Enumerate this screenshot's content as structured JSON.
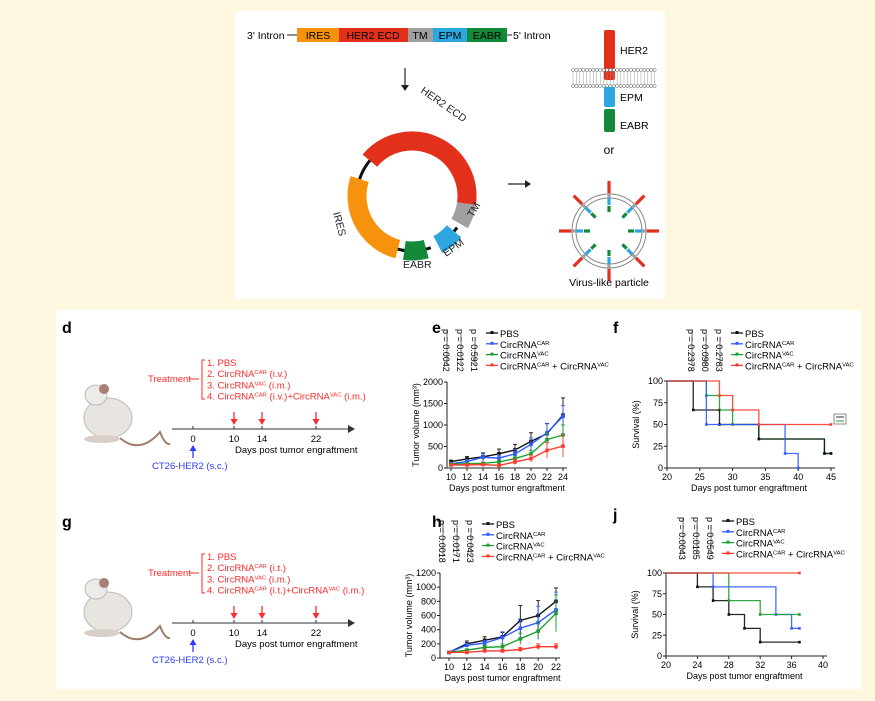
{
  "colors": {
    "PBS": "#111111",
    "CAR": "#2f5cff",
    "VAC": "#1f9e2f",
    "COMBO": "#ff3b30",
    "IRES": "#f7920c",
    "HER2": "#e3301b",
    "TM": "#a0a0a0",
    "EPM": "#2ea6e0",
    "EABR": "#128a3a",
    "background": "#fdf8df"
  },
  "construct": {
    "left_label": "3' Intron",
    "right_label": "5' Intron",
    "segments": [
      "IRES",
      "HER2 ECD",
      "TM",
      "EPM",
      "EABR"
    ],
    "circle_labels": {
      "her2": "HER2 ECD",
      "tm": "TM",
      "epm": "EPM",
      "eabr": "EABR",
      "ires": "IRES"
    },
    "protein_labels": {
      "her2": "HER2",
      "epm": "EPM",
      "eabr": "EABR"
    },
    "or": "or",
    "vlp_label": "Virus-like particle"
  },
  "schemes": [
    {
      "panel": "d",
      "treatment_label": "Treatment",
      "items": [
        [
          "1. PBS",
          ""
        ],
        [
          "2. CircRNA",
          "CAR",
          " (i.v.)"
        ],
        [
          "3. CircRNA",
          "VAC",
          " (i.m.)"
        ],
        [
          "4. CircRNA",
          "CAR",
          " (i.v.)+CircRNA",
          "VAC",
          " (i.m.)"
        ]
      ],
      "ticks": [
        "0",
        "10",
        "14",
        "22"
      ],
      "axis_label": "Days post tumor engraftment",
      "inoculation": "CT26-HER2 (s.c.)"
    },
    {
      "panel": "g",
      "treatment_label": "Treatment",
      "items": [
        [
          "1. PBS",
          ""
        ],
        [
          "2. CircRNA",
          "CAR",
          " (i.t.)"
        ],
        [
          "3. CircRNA",
          "VAC",
          " (i.m.)"
        ],
        [
          "4. CircRNA",
          "CAR",
          " (i.t.)+CircRNA",
          "VAC",
          " (i.m.)"
        ]
      ],
      "ticks": [
        "0",
        "10",
        "14",
        "22"
      ],
      "axis_label": "Days post tumor engraftment",
      "inoculation": "CT26-HER2 (s.c.)"
    }
  ],
  "legend": [
    [
      "PBS"
    ],
    [
      "CircRNA",
      "CAR"
    ],
    [
      "CircRNA",
      "VAC"
    ],
    [
      "CircRNA",
      "CAR",
      " + CircRNA",
      "VAC"
    ]
  ],
  "chart_data": [
    {
      "panel": "e",
      "type": "line",
      "xlabel": "Days post tumor engraftment",
      "ylabel": "Tumor volume (mm³)",
      "xlim": [
        10,
        24
      ],
      "ylim": [
        0,
        2000
      ],
      "xticks": [
        10,
        12,
        14,
        16,
        18,
        20,
        22,
        24
      ],
      "yticks": [
        0,
        500,
        1000,
        1500,
        2000
      ],
      "p_values": [
        "p = 0.0042",
        "p = 0.0122",
        "p = 0.5921"
      ],
      "x": [
        10,
        12,
        14,
        16,
        18,
        20,
        22,
        24
      ],
      "series": [
        {
          "key": "PBS",
          "values": [
            150,
            210,
            260,
            330,
            420,
            620,
            800,
            1230
          ],
          "err": [
            30,
            60,
            90,
            110,
            130,
            200,
            230,
            400
          ]
        },
        {
          "key": "CAR",
          "values": [
            100,
            150,
            250,
            230,
            330,
            550,
            820,
            1200
          ],
          "err": [
            30,
            50,
            80,
            80,
            100,
            150,
            220,
            250
          ]
        },
        {
          "key": "VAC",
          "values": [
            90,
            100,
            110,
            140,
            220,
            330,
            660,
            770
          ],
          "err": [
            20,
            30,
            30,
            40,
            60,
            80,
            150,
            230
          ]
        },
        {
          "key": "COMBO",
          "values": [
            70,
            70,
            80,
            60,
            140,
            220,
            410,
            510
          ],
          "err": [
            20,
            20,
            30,
            30,
            60,
            80,
            180,
            260
          ]
        }
      ]
    },
    {
      "panel": "f",
      "type": "survival",
      "xlabel": "Days post tumor engraftment",
      "ylabel": "Survival (%)",
      "xlim": [
        20,
        45
      ],
      "ylim": [
        0,
        100
      ],
      "xticks": [
        20,
        25,
        30,
        35,
        40,
        45
      ],
      "yticks": [
        0,
        25,
        50,
        75,
        100
      ],
      "p_values": [
        "p = 0.2378",
        "p = 0.0980",
        "p = 0.2783"
      ],
      "series": [
        {
          "key": "VAC",
          "steps": [
            [
              26,
              83.3
            ],
            [
              28,
              66.7
            ],
            [
              30,
              50
            ],
            [
              34,
              33.3
            ],
            [
              44,
              16.7
            ]
          ],
          "end": 45
        },
        {
          "key": "PBS",
          "steps": [
            [
              24,
              66.7
            ],
            [
              28,
              50
            ],
            [
              34,
              33.3
            ],
            [
              44,
              16.7
            ]
          ],
          "end": 45
        },
        {
          "key": "CAR",
          "steps": [
            [
              26,
              50
            ],
            [
              38,
              16.7
            ],
            [
              40,
              0
            ]
          ],
          "end": 40
        },
        {
          "key": "COMBO",
          "steps": [
            [
              28,
              83.3
            ],
            [
              30,
              66.7
            ],
            [
              34,
              50
            ]
          ],
          "end": 45
        }
      ]
    },
    {
      "panel": "h",
      "type": "line",
      "xlabel": "Days post tumor engraftment",
      "ylabel": "Tumor volume (mm³)",
      "xlim": [
        10,
        22
      ],
      "ylim": [
        0,
        1200
      ],
      "xticks": [
        10,
        12,
        14,
        16,
        18,
        20,
        22
      ],
      "yticks": [
        0,
        200,
        400,
        600,
        800,
        1000,
        1200
      ],
      "p_values": [
        "p = 0.0018",
        "p = 0.0171",
        "p = 0.0423"
      ],
      "x": [
        10,
        12,
        14,
        16,
        18,
        20,
        22
      ],
      "series": [
        {
          "key": "PBS",
          "values": [
            80,
            200,
            250,
            300,
            530,
            600,
            800
          ],
          "err": [
            10,
            40,
            50,
            60,
            210,
            210,
            190
          ]
        },
        {
          "key": "CAR",
          "values": [
            80,
            180,
            210,
            290,
            420,
            500,
            680
          ],
          "err": [
            10,
            30,
            40,
            80,
            120,
            230,
            250
          ]
        },
        {
          "key": "VAC",
          "values": [
            80,
            110,
            150,
            160,
            270,
            380,
            630
          ],
          "err": [
            10,
            20,
            30,
            40,
            80,
            120,
            260
          ]
        },
        {
          "key": "COMBO",
          "values": [
            80,
            80,
            100,
            100,
            120,
            160,
            160
          ],
          "err": [
            10,
            10,
            20,
            20,
            30,
            40,
            40
          ]
        }
      ]
    },
    {
      "panel": "j",
      "type": "survival",
      "xlabel": "Days post tumor engraftment",
      "ylabel": "Survival (%)",
      "xlim": [
        20,
        40
      ],
      "ylim": [
        0,
        100
      ],
      "xticks": [
        20,
        24,
        28,
        32,
        36,
        40
      ],
      "yticks": [
        0,
        25,
        50,
        75,
        100
      ],
      "p_values": [
        "p = 0.0043",
        "p = 0.0185",
        "p = 0.0549"
      ],
      "series": [
        {
          "key": "PBS",
          "steps": [
            [
              24,
              83.3
            ],
            [
              26,
              66.7
            ],
            [
              28,
              50
            ],
            [
              30,
              33.3
            ],
            [
              32,
              16.7
            ]
          ],
          "end": 37
        },
        {
          "key": "CAR",
          "steps": [
            [
              26,
              83.3
            ],
            [
              34,
              50
            ],
            [
              36,
              33.3
            ]
          ],
          "end": 37
        },
        {
          "key": "VAC",
          "steps": [
            [
              28,
              66.7
            ],
            [
              32,
              50
            ]
          ],
          "end": 37
        },
        {
          "key": "COMBO",
          "steps": [],
          "end": 37
        }
      ]
    }
  ]
}
